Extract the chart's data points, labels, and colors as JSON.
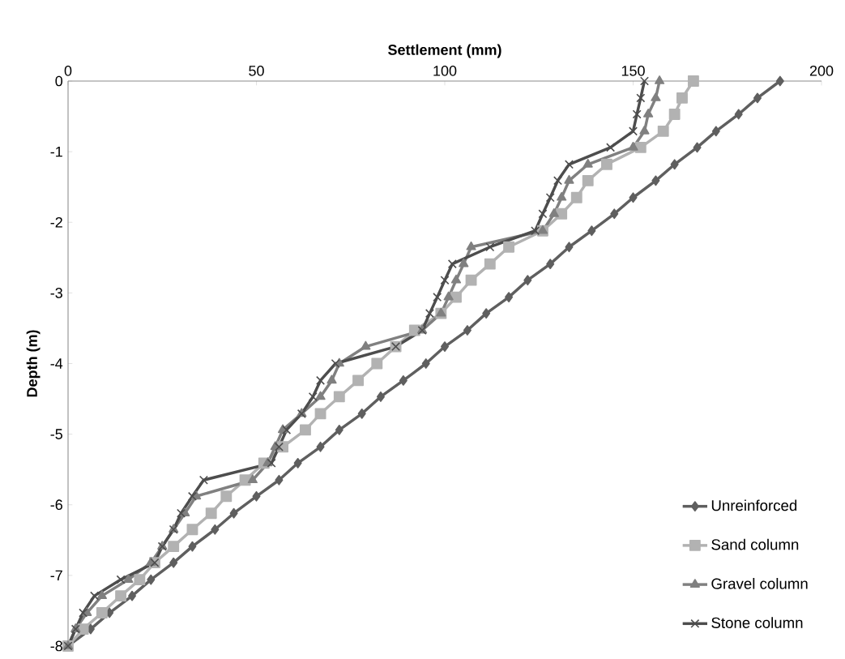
{
  "chart_data": {
    "type": "line",
    "xlabel": "Settlement (mm)",
    "ylabel": "Depth (m)",
    "xlim": [
      0,
      200
    ],
    "xticks": [
      0,
      50,
      100,
      150,
      200
    ],
    "ylim": [
      -8,
      0
    ],
    "yticks": [
      -8,
      -7,
      -6,
      -5,
      -4,
      -3,
      -2,
      -1,
      0
    ],
    "legend": "bottom right",
    "series": [
      {
        "name": "Unreinforced",
        "color": "#5f5f5f",
        "marker": "diamond",
        "x": [
          189,
          183,
          178,
          172,
          167,
          161,
          156,
          150,
          145,
          139,
          133,
          128,
          122,
          117,
          111,
          106,
          100,
          95,
          89,
          83,
          78,
          72,
          67,
          61,
          56,
          50,
          44,
          39,
          33,
          28,
          22,
          17,
          11,
          6,
          0
        ],
        "values": [
          0,
          -0.24,
          -0.47,
          -0.71,
          -0.94,
          -1.18,
          -1.41,
          -1.65,
          -1.88,
          -2.12,
          -2.35,
          -2.59,
          -2.82,
          -3.06,
          -3.29,
          -3.53,
          -3.76,
          -4,
          -4.24,
          -4.47,
          -4.71,
          -4.94,
          -5.18,
          -5.41,
          -5.65,
          -5.88,
          -6.12,
          -6.35,
          -6.59,
          -6.82,
          -7.06,
          -7.29,
          -7.53,
          -7.76,
          -8
        ]
      },
      {
        "name": "Sand column",
        "color": "#b2b2b2",
        "marker": "square",
        "x": [
          166,
          163,
          161,
          158,
          152,
          143,
          138,
          135,
          131,
          126,
          117,
          112,
          107,
          103,
          99,
          92,
          87,
          82,
          77,
          72,
          67,
          63,
          57,
          52,
          47,
          42,
          38,
          33,
          28,
          23,
          19,
          14,
          9,
          4,
          0
        ],
        "values": [
          0,
          -0.24,
          -0.47,
          -0.71,
          -0.94,
          -1.18,
          -1.41,
          -1.65,
          -1.88,
          -2.12,
          -2.35,
          -2.59,
          -2.82,
          -3.06,
          -3.29,
          -3.53,
          -3.76,
          -4,
          -4.24,
          -4.47,
          -4.71,
          -4.94,
          -5.18,
          -5.41,
          -5.65,
          -5.88,
          -6.12,
          -6.35,
          -6.59,
          -6.82,
          -7.06,
          -7.29,
          -7.53,
          -7.76,
          -8
        ]
      },
      {
        "name": "Gravel column",
        "color": "#808080",
        "marker": "triangle",
        "x": [
          157,
          156,
          154,
          153,
          150,
          138,
          133,
          131,
          129,
          126,
          107,
          105,
          103,
          101,
          99,
          94,
          79,
          72,
          70,
          67,
          62,
          57,
          55,
          53,
          49,
          34,
          31,
          28,
          25,
          22,
          16,
          9,
          5,
          2,
          0
        ],
        "values": [
          0,
          -0.24,
          -0.47,
          -0.71,
          -0.94,
          -1.18,
          -1.41,
          -1.65,
          -1.88,
          -2.12,
          -2.35,
          -2.59,
          -2.82,
          -3.06,
          -3.29,
          -3.53,
          -3.76,
          -4,
          -4.24,
          -4.47,
          -4.71,
          -4.94,
          -5.18,
          -5.41,
          -5.65,
          -5.88,
          -6.12,
          -6.35,
          -6.59,
          -6.82,
          -7.06,
          -7.29,
          -7.53,
          -7.76,
          -8
        ]
      },
      {
        "name": "Stone column",
        "color": "#4d4d4d",
        "marker": "cross",
        "x": [
          153,
          152,
          151,
          150,
          144,
          133,
          130,
          128,
          126,
          124,
          112,
          102,
          100,
          98,
          96,
          94,
          87,
          71,
          67,
          65,
          62,
          58,
          56,
          54,
          36,
          33,
          30,
          28,
          25,
          23,
          14,
          7,
          4,
          2,
          0
        ],
        "values": [
          0,
          -0.24,
          -0.47,
          -0.71,
          -0.94,
          -1.18,
          -1.41,
          -1.65,
          -1.88,
          -2.12,
          -2.35,
          -2.59,
          -2.82,
          -3.06,
          -3.29,
          -3.53,
          -3.76,
          -4,
          -4.24,
          -4.47,
          -4.71,
          -4.94,
          -5.18,
          -5.41,
          -5.65,
          -5.88,
          -6.12,
          -6.35,
          -6.59,
          -6.82,
          -7.06,
          -7.29,
          -7.53,
          -7.76,
          -8
        ]
      }
    ]
  }
}
